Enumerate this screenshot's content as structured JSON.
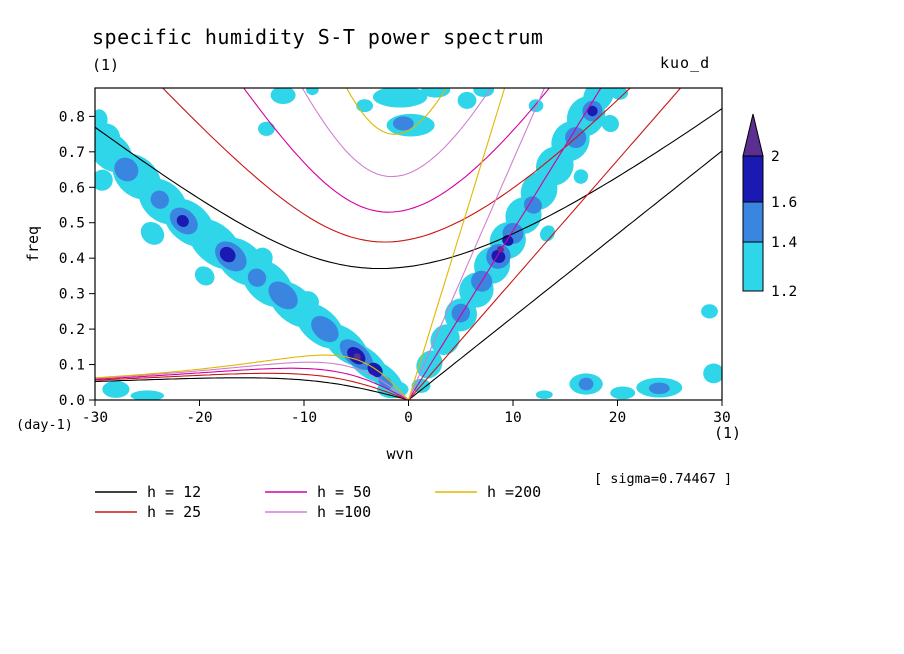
{
  "title": "specific humidity S-T power spectrum",
  "panel_label": "(1)",
  "run_label": "kuo_d",
  "sigma_label": "[ sigma=0.74467 ]",
  "axes": {
    "x": {
      "label": "wvn",
      "unit_label": "(1)",
      "min": -30,
      "max": 30,
      "tick_labels": [
        "-30",
        "-20",
        "-10",
        "0",
        "10",
        "20",
        "30"
      ]
    },
    "y": {
      "label": "freq",
      "unit_label": "(day-1)",
      "min": 0,
      "max": 0.88,
      "tick_labels": [
        "0.0",
        "0.1",
        "0.2",
        "0.3",
        "0.4",
        "0.5",
        "0.6",
        "0.7",
        "0.8"
      ]
    }
  },
  "colorbar": {
    "tick_labels": [
      "2",
      "1.6",
      "1.4",
      "1.2"
    ],
    "segment_colors": [
      "#5c2e91",
      "#1a1ab2",
      "#3a85e0",
      "#2fd5e8"
    ]
  },
  "legend": {
    "items": [
      {
        "label": "h = 12",
        "color": "#000000"
      },
      {
        "label": "h = 25",
        "color": "#cc1414"
      },
      {
        "label": "h = 50",
        "color": "#d400a0"
      },
      {
        "label": "h =100",
        "color": "#d07fd0"
      },
      {
        "label": "h =200",
        "color": "#dfb800"
      }
    ]
  },
  "chart_data": {
    "type": "heatmap",
    "title": "specific humidity S-T power spectrum",
    "xlabel": "wvn (1)",
    "ylabel": "freq (day-1)",
    "xlim": [
      -30,
      30
    ],
    "ylim": [
      0,
      0.88
    ],
    "contour_levels": [
      1.2,
      1.4,
      1.6,
      2
    ],
    "level_colors": [
      "#2fd5e8",
      "#3a85e0",
      "#1a1ab2",
      "#5c2e91"
    ],
    "dispersion_curves": {
      "description": "equatorial shallow-water dispersion curves (kelvin, n=1 inertio-gravity, n=1 rossby) for equivalent depths h in meters",
      "h_values": [
        12,
        25,
        50,
        100,
        200
      ],
      "colors": [
        "#000000",
        "#cc1414",
        "#d400a0",
        "#d07fd0",
        "#dfb800"
      ]
    },
    "power_blobs": {
      "format": "[wvn, freq, rx_wvn, ry_freq, rot_deg]",
      "cyan": [
        [
          -28.5,
          0.7,
          2.3,
          0.05,
          41
        ],
        [
          -26,
          0.63,
          2.6,
          0.055,
          41
        ],
        [
          -23.5,
          0.56,
          2.6,
          0.055,
          41
        ],
        [
          -21,
          0.5,
          2.8,
          0.055,
          41
        ],
        [
          -18.5,
          0.44,
          3.0,
          0.055,
          41
        ],
        [
          -16,
          0.39,
          2.8,
          0.055,
          41
        ],
        [
          -13.5,
          0.33,
          2.8,
          0.055,
          41
        ],
        [
          -11,
          0.27,
          2.8,
          0.05,
          41
        ],
        [
          -8.5,
          0.21,
          2.8,
          0.048,
          41
        ],
        [
          -6,
          0.155,
          2.6,
          0.042,
          41
        ],
        [
          -4,
          0.105,
          2.5,
          0.036,
          41
        ],
        [
          -2.3,
          0.065,
          2.2,
          0.03,
          41
        ],
        [
          -29.3,
          0.62,
          1.0,
          0.03,
          41
        ],
        [
          -24.5,
          0.47,
          1.2,
          0.03,
          41
        ],
        [
          -19.5,
          0.35,
          1.0,
          0.025,
          41
        ],
        [
          -14,
          0.4,
          1.0,
          0.03,
          41
        ],
        [
          -9.5,
          0.28,
          1.0,
          0.025,
          41
        ],
        [
          -29,
          0.74,
          1.4,
          0.04,
          0
        ],
        [
          -29.6,
          0.79,
          0.8,
          0.03,
          0
        ],
        [
          2,
          0.1,
          1.4,
          0.035,
          -58
        ],
        [
          3.5,
          0.17,
          1.5,
          0.04,
          -58
        ],
        [
          5,
          0.24,
          1.6,
          0.045,
          -58
        ],
        [
          6.5,
          0.31,
          1.7,
          0.048,
          -58
        ],
        [
          8,
          0.38,
          1.8,
          0.05,
          -58
        ],
        [
          9.5,
          0.45,
          1.8,
          0.05,
          -58
        ],
        [
          11,
          0.52,
          1.8,
          0.05,
          -58
        ],
        [
          12.5,
          0.59,
          1.9,
          0.05,
          -58
        ],
        [
          14,
          0.66,
          1.9,
          0.052,
          -58
        ],
        [
          15.5,
          0.73,
          2.0,
          0.052,
          -58
        ],
        [
          17,
          0.8,
          2.0,
          0.052,
          -58
        ],
        [
          18.2,
          0.86,
          1.8,
          0.04,
          -58
        ],
        [
          13.3,
          0.47,
          0.8,
          0.02,
          -58
        ],
        [
          19.3,
          0.78,
          0.8,
          0.025,
          -58
        ],
        [
          16.5,
          0.63,
          0.7,
          0.02,
          -58
        ],
        [
          -0.8,
          0.855,
          2.6,
          0.03,
          0
        ],
        [
          0.2,
          0.775,
          2.3,
          0.032,
          0
        ],
        [
          2.6,
          0.875,
          1.4,
          0.022,
          0
        ],
        [
          5.6,
          0.845,
          0.9,
          0.024,
          0
        ],
        [
          7.2,
          0.875,
          1.0,
          0.02,
          0
        ],
        [
          -4.2,
          0.83,
          0.8,
          0.018,
          0
        ],
        [
          -12,
          0.86,
          1.2,
          0.025,
          0
        ],
        [
          -13.6,
          0.765,
          0.8,
          0.02,
          0
        ],
        [
          -9.2,
          0.875,
          0.6,
          0.015,
          0
        ],
        [
          12.2,
          0.83,
          0.7,
          0.018,
          0
        ],
        [
          20.2,
          0.865,
          0.8,
          0.018,
          0
        ],
        [
          28.8,
          0.25,
          0.8,
          0.02,
          0
        ],
        [
          29.2,
          0.075,
          1.0,
          0.028,
          0
        ],
        [
          24,
          0.035,
          2.2,
          0.028,
          0
        ],
        [
          17,
          0.045,
          1.6,
          0.03,
          0
        ],
        [
          20.5,
          0.02,
          1.2,
          0.018,
          0
        ],
        [
          -28,
          0.03,
          1.3,
          0.024,
          0
        ],
        [
          -25,
          0.012,
          1.6,
          0.015,
          0
        ],
        [
          -1.5,
          0.03,
          1.5,
          0.025,
          0
        ],
        [
          1.2,
          0.04,
          0.9,
          0.02,
          0
        ],
        [
          13,
          0.015,
          0.8,
          0.012,
          0
        ]
      ],
      "blue": [
        [
          -27,
          0.65,
          1.2,
          0.032,
          41
        ],
        [
          -21.5,
          0.505,
          1.5,
          0.032,
          41
        ],
        [
          -17,
          0.405,
          1.7,
          0.035,
          41
        ],
        [
          -12,
          0.295,
          1.6,
          0.032,
          41
        ],
        [
          -8,
          0.2,
          1.5,
          0.03,
          41
        ],
        [
          -5,
          0.128,
          1.9,
          0.03,
          41
        ],
        [
          -23.8,
          0.565,
          0.9,
          0.025,
          41
        ],
        [
          -14.5,
          0.345,
          0.9,
          0.025,
          41
        ],
        [
          -2.2,
          0.05,
          0.8,
          0.015,
          41
        ],
        [
          5,
          0.245,
          0.9,
          0.026,
          -58
        ],
        [
          7,
          0.335,
          1.0,
          0.03,
          -58
        ],
        [
          8.6,
          0.405,
          1.2,
          0.034,
          -58
        ],
        [
          10,
          0.47,
          1.0,
          0.03,
          -58
        ],
        [
          11.9,
          0.55,
          0.8,
          0.026,
          -58
        ],
        [
          16,
          0.74,
          1.0,
          0.03,
          -58
        ],
        [
          17.6,
          0.815,
          1.0,
          0.028,
          -58
        ],
        [
          -0.5,
          0.78,
          1.0,
          0.02,
          0
        ],
        [
          24,
          0.033,
          1.0,
          0.016,
          0
        ],
        [
          17,
          0.045,
          0.7,
          0.018,
          0
        ]
      ],
      "navy": [
        [
          -17.3,
          0.41,
          0.8,
          0.02,
          41
        ],
        [
          -5,
          0.125,
          1.0,
          0.02,
          41
        ],
        [
          -3.2,
          0.085,
          0.8,
          0.018,
          41
        ],
        [
          -21.6,
          0.505,
          0.6,
          0.016,
          41
        ],
        [
          8.6,
          0.405,
          0.6,
          0.02,
          -58
        ],
        [
          9.5,
          0.45,
          0.5,
          0.016,
          -58
        ],
        [
          17.6,
          0.815,
          0.5,
          0.015,
          -58
        ]
      ],
      "purple": [
        [
          8.8,
          0.425,
          0.3,
          0.01,
          -58
        ],
        [
          -4.9,
          0.122,
          0.35,
          0.009,
          41
        ]
      ]
    }
  }
}
